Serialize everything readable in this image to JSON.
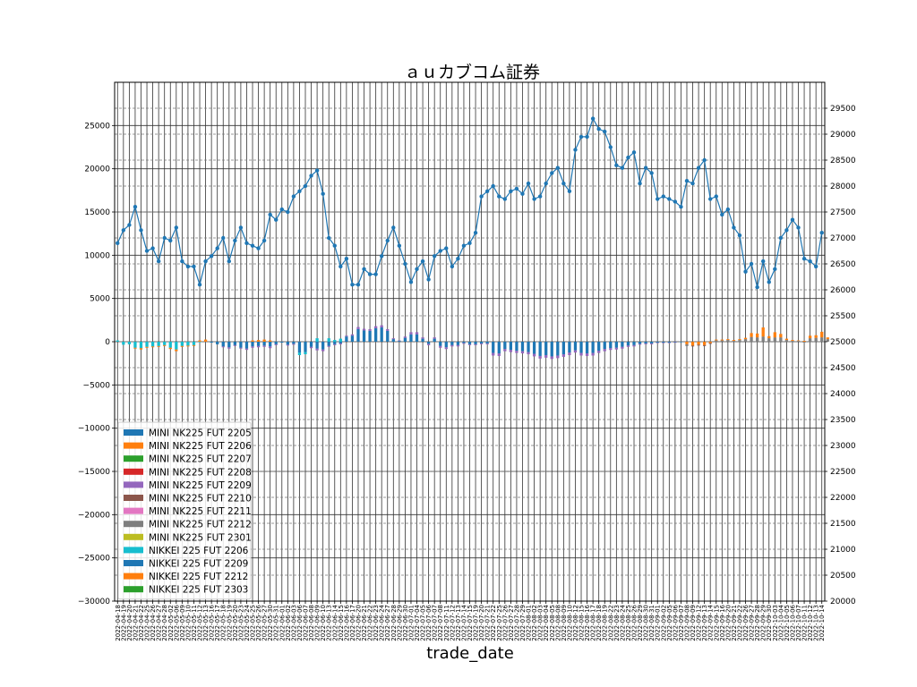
{
  "chart_data": {
    "type": "bar",
    "title": "ａｕカブコム証券",
    "xlabel": "trade_date",
    "ylabel": "",
    "ylim": [
      -30000,
      30000
    ],
    "y2lim": [
      20000,
      30000
    ],
    "y_ticks": [
      -30000,
      -25000,
      -20000,
      -15000,
      -10000,
      -5000,
      0,
      5000,
      10000,
      15000,
      20000,
      25000
    ],
    "y2_ticks": [
      20000,
      20500,
      21000,
      21500,
      22000,
      22500,
      23000,
      23500,
      24000,
      24500,
      25000,
      25500,
      26000,
      26500,
      27000,
      27500,
      28000,
      28500,
      29000,
      29500
    ],
    "grid": true,
    "legend_position": "lower-left",
    "categories": [
      "2022-04-18",
      "2022-04-19",
      "2022-04-20",
      "2022-04-21",
      "2022-04-22",
      "2022-04-25",
      "2022-04-26",
      "2022-04-27",
      "2022-04-28",
      "2022-05-02",
      "2022-05-06",
      "2022-05-09",
      "2022-05-10",
      "2022-05-11",
      "2022-05-12",
      "2022-05-13",
      "2022-05-16",
      "2022-05-17",
      "2022-05-18",
      "2022-05-19",
      "2022-05-20",
      "2022-05-23",
      "2022-05-24",
      "2022-05-25",
      "2022-05-26",
      "2022-05-27",
      "2022-05-30",
      "2022-05-31",
      "2022-06-01",
      "2022-06-02",
      "2022-06-03",
      "2022-06-06",
      "2022-06-07",
      "2022-06-08",
      "2022-06-09",
      "2022-06-10",
      "2022-06-13",
      "2022-06-14",
      "2022-06-15",
      "2022-06-16",
      "2022-06-17",
      "2022-06-20",
      "2022-06-21",
      "2022-06-22",
      "2022-06-23",
      "2022-06-24",
      "2022-06-27",
      "2022-06-28",
      "2022-06-29",
      "2022-06-30",
      "2022-07-01",
      "2022-07-04",
      "2022-07-05",
      "2022-07-06",
      "2022-07-07",
      "2022-07-08",
      "2022-07-11",
      "2022-07-12",
      "2022-07-13",
      "2022-07-14",
      "2022-07-15",
      "2022-07-19",
      "2022-07-20",
      "2022-07-21",
      "2022-07-22",
      "2022-07-25",
      "2022-07-26",
      "2022-07-27",
      "2022-07-28",
      "2022-07-29",
      "2022-08-01",
      "2022-08-02",
      "2022-08-03",
      "2022-08-04",
      "2022-08-05",
      "2022-08-08",
      "2022-08-09",
      "2022-08-10",
      "2022-08-12",
      "2022-08-15",
      "2022-08-16",
      "2022-08-17",
      "2022-08-18",
      "2022-08-19",
      "2022-08-22",
      "2022-08-23",
      "2022-08-24",
      "2022-08-25",
      "2022-08-26",
      "2022-08-29",
      "2022-08-30",
      "2022-08-31",
      "2022-09-01",
      "2022-09-02",
      "2022-09-05",
      "2022-09-06",
      "2022-09-07",
      "2022-09-08",
      "2022-09-09",
      "2022-09-12",
      "2022-09-13",
      "2022-09-14",
      "2022-09-15",
      "2022-09-16",
      "2022-09-20",
      "2022-09-21",
      "2022-09-22",
      "2022-09-26",
      "2022-09-27",
      "2022-09-28",
      "2022-09-29",
      "2022-09-30",
      "2022-10-03",
      "2022-10-04",
      "2022-10-05",
      "2022-10-06",
      "2022-10-07",
      "2022-10-11",
      "2022-10-12",
      "2022-10-13",
      "2022-10-14"
    ],
    "legend": [
      "MINI NK225 FUT 2205",
      "MINI NK225 FUT 2206",
      "MINI NK225 FUT 2207",
      "MINI NK225 FUT 2208",
      "MINI NK225 FUT 2209",
      "MINI NK225 FUT 2210",
      "MINI NK225 FUT 2211",
      "MINI NK225 FUT 2212",
      "MINI NK225 FUT 2301",
      "NIKKEI 225 FUT 2206",
      "NIKKEI 225 FUT 2209",
      "NIKKEI 225 FUT 2212",
      "NIKKEI 225 FUT 2303"
    ],
    "colors": [
      "#1f77b4",
      "#ff7f0e",
      "#2ca02c",
      "#d62728",
      "#9467bd",
      "#8c564b",
      "#e377c2",
      "#7f7f7f",
      "#bcbd22",
      "#17becf",
      "#1f77b4",
      "#ff7f0e",
      "#2ca02c"
    ],
    "line_color": "#1f77b4",
    "bar_segments": [
      [
        [
          9,
          150
        ]
      ],
      [
        [
          9,
          -350
        ]
      ],
      [
        [
          9,
          -300
        ]
      ],
      [
        [
          9,
          -700
        ],
        [
          1,
          -100
        ]
      ],
      [
        [
          9,
          -750
        ],
        [
          1,
          -150
        ]
      ],
      [
        [
          9,
          -600
        ],
        [
          1,
          -100
        ]
      ],
      [
        [
          9,
          -550
        ],
        [
          1,
          -100
        ]
      ],
      [
        [
          9,
          -500
        ],
        [
          1,
          -100
        ]
      ],
      [
        [
          9,
          -400
        ],
        [
          1,
          -100
        ]
      ],
      [
        [
          9,
          -700
        ],
        [
          1,
          -150
        ]
      ],
      [
        [
          9,
          -900
        ],
        [
          1,
          -200
        ]
      ],
      [
        [
          9,
          -500
        ],
        [
          1,
          -100
        ]
      ],
      [
        [
          9,
          -450
        ],
        [
          1,
          -100
        ]
      ],
      [
        [
          9,
          -400
        ],
        [
          1,
          -100
        ]
      ],
      [
        [
          9,
          -50
        ],
        [
          1,
          150
        ]
      ],
      [
        [
          1,
          250
        ]
      ],
      [
        [
          10,
          -100
        ]
      ],
      [
        [
          10,
          -300
        ]
      ],
      [
        [
          10,
          -550
        ],
        [
          4,
          -100
        ]
      ],
      [
        [
          10,
          -650
        ],
        [
          4,
          -150
        ]
      ],
      [
        [
          10,
          -400
        ],
        [
          4,
          -100
        ]
      ],
      [
        [
          10,
          -700
        ],
        [
          4,
          -100
        ]
      ],
      [
        [
          10,
          -800
        ],
        [
          4,
          -150
        ]
      ],
      [
        [
          10,
          -550
        ],
        [
          4,
          -150
        ],
        [
          1,
          150
        ]
      ],
      [
        [
          10,
          -500
        ],
        [
          4,
          -150
        ],
        [
          1,
          200
        ]
      ],
      [
        [
          10,
          -450
        ],
        [
          4,
          -150
        ],
        [
          1,
          250
        ]
      ],
      [
        [
          10,
          -550
        ],
        [
          4,
          -200
        ],
        [
          1,
          150
        ]
      ],
      [
        [
          10,
          -300
        ],
        [
          4,
          -100
        ]
      ],
      [
        [
          10,
          -100
        ]
      ],
      [
        [
          10,
          -350
        ],
        [
          4,
          -100
        ]
      ],
      [
        [
          10,
          -250
        ],
        [
          4,
          -100
        ]
      ],
      [
        [
          10,
          -1250
        ],
        [
          9,
          -300
        ]
      ],
      [
        [
          10,
          -1200
        ],
        [
          9,
          -250
        ]
      ],
      [
        [
          10,
          -600
        ],
        [
          4,
          -150
        ]
      ],
      [
        [
          10,
          -800
        ],
        [
          4,
          -200
        ],
        [
          9,
          400
        ]
      ],
      [
        [
          10,
          -900
        ],
        [
          4,
          -200
        ]
      ],
      [
        [
          10,
          -500
        ],
        [
          4,
          -100
        ],
        [
          9,
          400
        ]
      ],
      [
        [
          10,
          -300
        ],
        [
          4,
          -100
        ],
        [
          9,
          200
        ]
      ],
      [
        [
          10,
          -200
        ],
        [
          4,
          -100
        ],
        [
          9,
          350
        ]
      ],
      [
        [
          10,
          600
        ],
        [
          4,
          100
        ]
      ],
      [
        [
          10,
          700
        ],
        [
          4,
          150
        ]
      ],
      [
        [
          10,
          1450
        ],
        [
          4,
          250
        ]
      ],
      [
        [
          10,
          1300
        ],
        [
          4,
          200
        ]
      ],
      [
        [
          10,
          1250
        ],
        [
          4,
          200
        ]
      ],
      [
        [
          10,
          1550
        ],
        [
          4,
          250
        ]
      ],
      [
        [
          10,
          1650
        ],
        [
          4,
          250
        ]
      ],
      [
        [
          10,
          1250
        ],
        [
          4,
          200
        ]
      ],
      [
        [
          10,
          300
        ],
        [
          4,
          100
        ]
      ],
      [
        [
          10,
          100
        ],
        [
          4,
          50
        ]
      ],
      [
        [
          10,
          450
        ],
        [
          4,
          150
        ]
      ],
      [
        [
          10,
          850
        ],
        [
          4,
          250
        ]
      ],
      [
        [
          10,
          850
        ],
        [
          4,
          250
        ]
      ],
      [
        [
          10,
          350
        ],
        [
          4,
          150
        ]
      ],
      [
        [
          10,
          -250
        ],
        [
          4,
          -150
        ]
      ],
      [
        [
          10,
          350
        ],
        [
          4,
          150
        ]
      ],
      [
        [
          10,
          -500
        ],
        [
          4,
          -200
        ]
      ],
      [
        [
          10,
          -650
        ],
        [
          4,
          -200
        ]
      ],
      [
        [
          10,
          -400
        ],
        [
          4,
          -150
        ]
      ],
      [
        [
          10,
          -400
        ],
        [
          4,
          -150
        ]
      ],
      [
        [
          10,
          -150
        ],
        [
          4,
          -100
        ]
      ],
      [
        [
          10,
          -300
        ],
        [
          4,
          -100
        ]
      ],
      [
        [
          10,
          -300
        ],
        [
          4,
          -100
        ]
      ],
      [
        [
          10,
          -200
        ],
        [
          4,
          -100
        ]
      ],
      [
        [
          10,
          -200
        ],
        [
          4,
          -100
        ]
      ],
      [
        [
          10,
          -1300
        ],
        [
          4,
          -300
        ]
      ],
      [
        [
          10,
          -1350
        ],
        [
          4,
          -300
        ]
      ],
      [
        [
          10,
          -850
        ],
        [
          4,
          -250
        ]
      ],
      [
        [
          10,
          -950
        ],
        [
          4,
          -250
        ]
      ],
      [
        [
          10,
          -1050
        ],
        [
          4,
          -250
        ]
      ],
      [
        [
          10,
          -1100
        ],
        [
          4,
          -250
        ]
      ],
      [
        [
          10,
          -1200
        ],
        [
          4,
          -250
        ]
      ],
      [
        [
          10,
          -1400
        ],
        [
          4,
          -300
        ]
      ],
      [
        [
          10,
          -1650
        ],
        [
          4,
          -300
        ]
      ],
      [
        [
          10,
          -1550
        ],
        [
          4,
          -300
        ]
      ],
      [
        [
          10,
          -1700
        ],
        [
          4,
          -300
        ]
      ],
      [
        [
          10,
          -1600
        ],
        [
          4,
          -300
        ]
      ],
      [
        [
          10,
          -1450
        ],
        [
          4,
          -300
        ]
      ],
      [
        [
          10,
          -1250
        ],
        [
          4,
          -300
        ]
      ],
      [
        [
          10,
          -1000
        ],
        [
          4,
          -250
        ]
      ],
      [
        [
          10,
          -1300
        ],
        [
          4,
          -300
        ]
      ],
      [
        [
          10,
          -1350
        ],
        [
          4,
          -300
        ]
      ],
      [
        [
          10,
          -1300
        ],
        [
          4,
          -300
        ]
      ],
      [
        [
          10,
          -1050
        ],
        [
          4,
          -250
        ]
      ],
      [
        [
          10,
          -850
        ],
        [
          4,
          -250
        ]
      ],
      [
        [
          10,
          -750
        ],
        [
          4,
          -200
        ]
      ],
      [
        [
          10,
          -700
        ],
        [
          4,
          -200
        ]
      ],
      [
        [
          10,
          -600
        ],
        [
          4,
          -200
        ]
      ],
      [
        [
          10,
          -450
        ],
        [
          4,
          -150
        ]
      ],
      [
        [
          10,
          -400
        ],
        [
          4,
          -150
        ]
      ],
      [
        [
          10,
          -250
        ],
        [
          4,
          -100
        ]
      ],
      [
        [
          10,
          -200
        ],
        [
          4,
          -100
        ]
      ],
      [
        [
          10,
          -200
        ],
        [
          4,
          -100
        ]
      ],
      [
        [
          10,
          -100
        ],
        [
          4,
          -50
        ]
      ],
      [
        [
          10,
          -100
        ],
        [
          4,
          -50
        ]
      ],
      [
        [
          10,
          -100
        ],
        [
          4,
          -50
        ]
      ],
      [
        [
          10,
          -50
        ],
        [
          4,
          -50
        ]
      ],
      [
        [
          10,
          -50
        ]
      ],
      [
        [
          11,
          -300
        ],
        [
          7,
          -200
        ]
      ],
      [
        [
          11,
          -450
        ],
        [
          5,
          -100
        ]
      ],
      [
        [
          11,
          -350
        ],
        [
          5,
          -100
        ]
      ],
      [
        [
          11,
          -400
        ],
        [
          5,
          -100
        ]
      ],
      [
        [
          11,
          -150
        ],
        [
          5,
          -100
        ]
      ],
      [
        [
          7,
          150
        ],
        [
          11,
          100
        ]
      ],
      [
        [
          7,
          150
        ],
        [
          11,
          100
        ]
      ],
      [
        [
          7,
          200
        ],
        [
          11,
          100
        ]
      ],
      [
        [
          7,
          100
        ],
        [
          11,
          100
        ]
      ],
      [
        [
          7,
          200
        ],
        [
          11,
          100
        ]
      ],
      [
        [
          7,
          300
        ],
        [
          11,
          150
        ]
      ],
      [
        [
          7,
          550
        ],
        [
          11,
          450
        ]
      ],
      [
        [
          7,
          500
        ],
        [
          11,
          450
        ]
      ],
      [
        [
          7,
          600
        ],
        [
          11,
          1050
        ]
      ],
      [
        [
          7,
          400
        ],
        [
          11,
          250
        ]
      ],
      [
        [
          7,
          500
        ],
        [
          11,
          600
        ]
      ],
      [
        [
          7,
          500
        ],
        [
          11,
          400
        ]
      ],
      [
        [
          7,
          200
        ],
        [
          11,
          150
        ]
      ],
      [
        [
          7,
          100
        ],
        [
          11,
          100
        ]
      ],
      [
        [
          7,
          100
        ],
        [
          11,
          50
        ]
      ],
      [
        [
          7,
          -100
        ],
        [
          11,
          100
        ]
      ],
      [
        [
          7,
          400
        ],
        [
          11,
          300
        ]
      ],
      [
        [
          7,
          450
        ],
        [
          11,
          300
        ]
      ],
      [
        [
          7,
          500
        ],
        [
          11,
          650
        ]
      ],
      [
        [
          7,
          300
        ],
        [
          11,
          200
        ]
      ]
    ],
    "line_series": {
      "name": "",
      "values": [
        26900,
        27150,
        27250,
        27600,
        27150,
        26750,
        26800,
        26550,
        27000,
        26950,
        27200,
        26550,
        26450,
        26450,
        26100,
        26550,
        26650,
        26800,
        27000,
        26550,
        26950,
        27200,
        26900,
        26850,
        26800,
        26950,
        27450,
        27350,
        27550,
        27500,
        27800,
        27900,
        28000,
        28200,
        28300,
        27850,
        27000,
        26850,
        26450,
        26600,
        26100,
        26100,
        26400,
        26300,
        26300,
        26650,
        26950,
        27200,
        26850,
        26500,
        26150,
        26400,
        26550,
        26200,
        26650,
        26750,
        26800,
        26450,
        26600,
        26850,
        26900,
        27100,
        27800,
        27900,
        28000,
        27800,
        27750,
        27900,
        27950,
        27850,
        28050,
        27750,
        27800,
        28050,
        28250,
        28350,
        28050,
        27900,
        28700,
        28950,
        28950,
        29300,
        29100,
        29050,
        28750,
        28400,
        28350,
        28550,
        28650,
        28050,
        28350,
        28250,
        27750,
        27800,
        27750,
        27700,
        27600,
        28100,
        28050,
        28350,
        28500,
        27750,
        27800,
        27450,
        27550,
        27200,
        27050,
        26350,
        26500,
        26050,
        26550,
        26150,
        26400,
        27000,
        27150,
        27350,
        27200,
        26600,
        26550,
        26450,
        27100
      ]
    }
  }
}
